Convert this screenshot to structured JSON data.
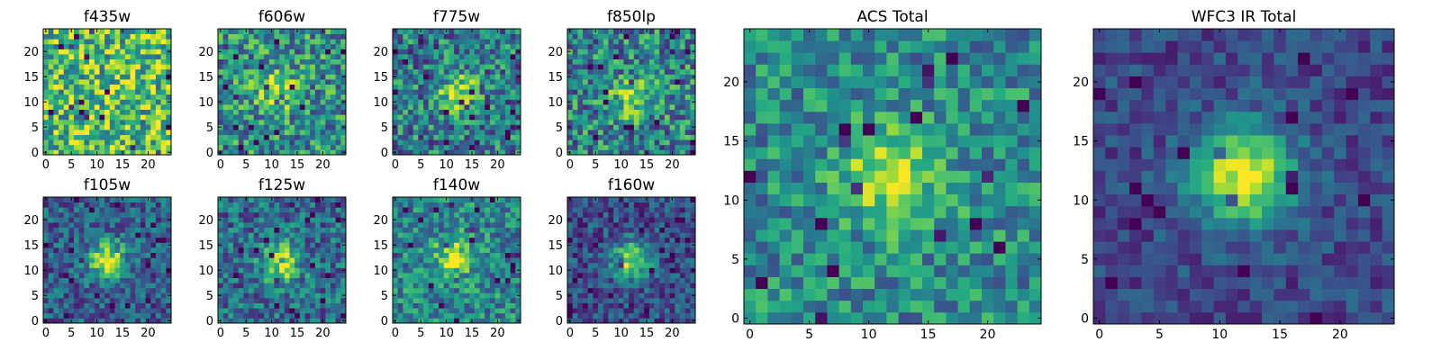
{
  "chart_data": [
    {
      "type": "heatmap",
      "title": "f435w",
      "size": 25,
      "xticks": [
        "0",
        "5",
        "10",
        "15",
        "20"
      ],
      "yticks": [
        "0",
        "5",
        "10",
        "15",
        "20"
      ],
      "peak": [
        11.5,
        12
      ],
      "amp": 0.06,
      "base": 0.7,
      "noise": 0.45,
      "seed": 11
    },
    {
      "type": "heatmap",
      "title": "f606w",
      "size": 25,
      "xticks": [
        "0",
        "5",
        "10",
        "15",
        "20"
      ],
      "yticks": [
        "0",
        "5",
        "10",
        "15",
        "20"
      ],
      "peak": [
        11.0,
        12.5
      ],
      "amp": 0.45,
      "base": 0.5,
      "noise": 0.4,
      "seed": 23
    },
    {
      "type": "heatmap",
      "title": "f775w",
      "size": 25,
      "xticks": [
        "0",
        "5",
        "10",
        "15",
        "20"
      ],
      "yticks": [
        "0",
        "5",
        "10",
        "15",
        "20"
      ],
      "peak": [
        12.0,
        12.0
      ],
      "amp": 0.5,
      "base": 0.42,
      "noise": 0.4,
      "seed": 37
    },
    {
      "type": "heatmap",
      "title": "f850lp",
      "size": 25,
      "xticks": [
        "0",
        "5",
        "10",
        "15",
        "20"
      ],
      "yticks": [
        "0",
        "5",
        "10",
        "15",
        "20"
      ],
      "peak": [
        12.5,
        11.0
      ],
      "amp": 0.45,
      "base": 0.45,
      "noise": 0.42,
      "seed": 41
    },
    {
      "type": "heatmap",
      "title": "f105w",
      "size": 25,
      "xticks": [
        "0",
        "5",
        "10",
        "15",
        "20"
      ],
      "yticks": [
        "0",
        "5",
        "10",
        "15",
        "20"
      ],
      "peak": [
        12.0,
        12.0
      ],
      "amp": 0.65,
      "base": 0.3,
      "noise": 0.28,
      "seed": 53
    },
    {
      "type": "heatmap",
      "title": "f125w",
      "size": 25,
      "xticks": [
        "0",
        "5",
        "10",
        "15",
        "20"
      ],
      "yticks": [
        "0",
        "5",
        "10",
        "15",
        "20"
      ],
      "peak": [
        12.0,
        11.5
      ],
      "amp": 0.55,
      "base": 0.36,
      "noise": 0.32,
      "seed": 67
    },
    {
      "type": "heatmap",
      "title": "f140w",
      "size": 25,
      "xticks": [
        "0",
        "5",
        "10",
        "15",
        "20"
      ],
      "yticks": [
        "0",
        "5",
        "10",
        "15",
        "20"
      ],
      "peak": [
        11.5,
        12.5
      ],
      "amp": 0.45,
      "base": 0.46,
      "noise": 0.32,
      "seed": 71
    },
    {
      "type": "heatmap",
      "title": "f160w",
      "size": 25,
      "xticks": [
        "0",
        "5",
        "10",
        "15",
        "20"
      ],
      "yticks": [
        "0",
        "5",
        "10",
        "15",
        "20"
      ],
      "peak": [
        12.0,
        12.0
      ],
      "amp": 0.62,
      "base": 0.24,
      "noise": 0.26,
      "seed": 83
    },
    {
      "type": "heatmap",
      "title": "ACS Total",
      "size": 25,
      "xticks": [
        "0",
        "5",
        "10",
        "15",
        "20"
      ],
      "yticks": [
        "0",
        "5",
        "10",
        "15",
        "20"
      ],
      "peak": [
        12.0,
        12.0
      ],
      "amp": 0.45,
      "base": 0.48,
      "noise": 0.3,
      "seed": 97
    },
    {
      "type": "heatmap",
      "title": "WFC3 IR Total",
      "size": 25,
      "xticks": [
        "0",
        "5",
        "10",
        "15",
        "20"
      ],
      "yticks": [
        "0",
        "5",
        "10",
        "15",
        "20"
      ],
      "peak": [
        12.0,
        12.0
      ],
      "amp": 0.75,
      "base": 0.22,
      "noise": 0.18,
      "seed": 101
    }
  ],
  "colormap": [
    "#440154",
    "#472c7a",
    "#3b518b",
    "#2c718e",
    "#21908d",
    "#27ad81",
    "#5cc863",
    "#aadc32",
    "#fde725"
  ]
}
